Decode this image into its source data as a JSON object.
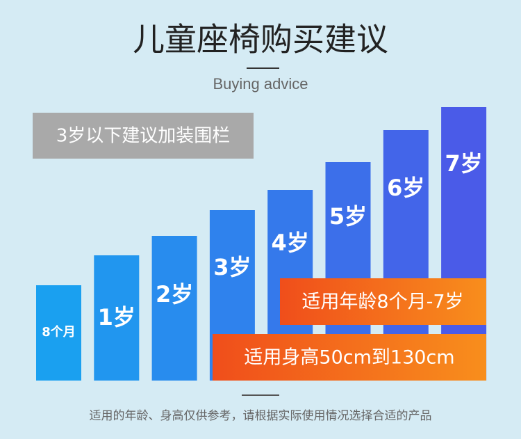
{
  "header": {
    "title": "儿童座椅购买建议",
    "subtitle": "Buying advice"
  },
  "notice": "3岁以下建议加装围栏",
  "bars": [
    "8个月",
    "1岁",
    "2岁",
    "3岁",
    "4岁",
    "5岁",
    "6岁",
    "7岁"
  ],
  "badges": [
    "适用年龄8个月-7岁",
    "适用身高50cm到130cm"
  ],
  "footer": "适用的年龄、身高仅供参考，请根据实际使用情况选择合适的产品"
}
